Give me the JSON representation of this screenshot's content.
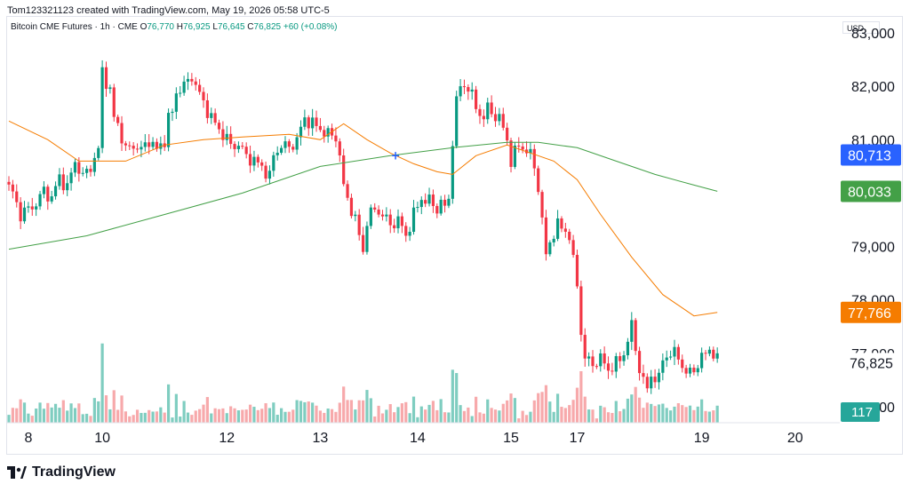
{
  "header": {
    "credit": "Tom123321123 created with TradingView.com, May 19, 2026 05:58 UTC-5"
  },
  "legend": {
    "symbol": "Bitcoin CME Futures · 1h · CME",
    "o_key": "O",
    "o": "76,770",
    "h_key": "H",
    "h": "76,925",
    "l_key": "L",
    "l": "76,645",
    "c_key": "C",
    "c": "76,825",
    "change": "+60 (+0.08%)"
  },
  "currency": "USD",
  "brand": {
    "name": "TradingView"
  },
  "colors": {
    "up": "#089981",
    "down": "#f23645",
    "vol_up": "#7fcdc0",
    "vol_down": "#f7a9ab",
    "ma_orange": "#f57c00",
    "ma_green": "#43a047",
    "blue_label": "#2962ff"
  },
  "chart_data": {
    "type": "candlestick",
    "y_axis": {
      "min": 75700,
      "max": 83300,
      "ticks": [
        76000,
        77000,
        78000,
        79000,
        80000,
        81000,
        82000,
        83000
      ],
      "tick_labels": [
        "76,000",
        "77,000",
        "78,000",
        "79,000",
        "",
        "81,000",
        "82,000",
        "83,000"
      ]
    },
    "x_axis": {
      "labels": [
        "8",
        "10",
        "12",
        "13",
        "14",
        "15",
        "17",
        "19",
        "20"
      ],
      "label_bar_index": [
        5,
        24,
        56,
        80,
        105,
        129,
        146,
        178,
        202
      ]
    },
    "price_labels": [
      {
        "value": 80713,
        "text": "80,713",
        "color": "#2962ff"
      },
      {
        "value": 80033,
        "text": "80,033",
        "color": "#43a047"
      },
      {
        "value": 77766,
        "text": "77,766",
        "color": "#f57c00"
      },
      {
        "value": 76825,
        "text": "76,825",
        "color": "none"
      }
    ],
    "volume_label": {
      "text": "117",
      "color": "#26a69a"
    },
    "anchors": [
      [
        0,
        80100
      ],
      [
        1,
        80000
      ],
      [
        3,
        79600
      ],
      [
        5,
        79700
      ],
      [
        7,
        79800
      ],
      [
        9,
        80050
      ],
      [
        11,
        79900
      ],
      [
        13,
        80300
      ],
      [
        15,
        80100
      ],
      [
        17,
        80600
      ],
      [
        19,
        80300
      ],
      [
        20,
        80400
      ],
      [
        21,
        80500
      ],
      [
        23,
        80800
      ],
      [
        24,
        82300
      ],
      [
        26,
        81900
      ],
      [
        27,
        81400
      ],
      [
        28,
        81300
      ],
      [
        30,
        80800
      ],
      [
        32,
        80900
      ],
      [
        34,
        80800
      ],
      [
        36,
        81000
      ],
      [
        38,
        80800
      ],
      [
        40,
        81000
      ],
      [
        41,
        81400
      ],
      [
        42,
        81500
      ],
      [
        43,
        81900
      ],
      [
        45,
        82000
      ],
      [
        47,
        82200
      ],
      [
        48,
        82000
      ],
      [
        50,
        81700
      ],
      [
        52,
        81400
      ],
      [
        55,
        81100
      ],
      [
        57,
        80900
      ],
      [
        59,
        80900
      ],
      [
        61,
        80700
      ],
      [
        63,
        80600
      ],
      [
        65,
        80500
      ],
      [
        67,
        80300
      ],
      [
        68,
        80700
      ],
      [
        70,
        80900
      ],
      [
        72,
        80850
      ],
      [
        74,
        81000
      ],
      [
        76,
        81400
      ],
      [
        78,
        81300
      ],
      [
        80,
        81200
      ],
      [
        82,
        81100
      ],
      [
        84,
        81050
      ],
      [
        85,
        80700
      ],
      [
        86,
        80100
      ],
      [
        88,
        79700
      ],
      [
        89,
        79500
      ],
      [
        90,
        79200
      ],
      [
        91,
        78900
      ],
      [
        92,
        79500
      ],
      [
        94,
        79700
      ],
      [
        96,
        79600
      ],
      [
        98,
        79400
      ],
      [
        100,
        79500
      ],
      [
        102,
        79200
      ],
      [
        104,
        79600
      ],
      [
        106,
        79900
      ],
      [
        108,
        79850
      ],
      [
        110,
        79700
      ],
      [
        111,
        79850
      ],
      [
        112,
        79700
      ],
      [
        113,
        79900
      ],
      [
        114,
        81000
      ],
      [
        115,
        81700
      ],
      [
        116,
        82000
      ],
      [
        118,
        82000
      ],
      [
        120,
        81600
      ],
      [
        122,
        81400
      ],
      [
        123,
        81600
      ],
      [
        124,
        81500
      ],
      [
        126,
        81400
      ],
      [
        128,
        81000
      ],
      [
        129,
        80600
      ],
      [
        131,
        80900
      ],
      [
        133,
        80800
      ],
      [
        134,
        80700
      ],
      [
        135,
        80500
      ],
      [
        136,
        80100
      ],
      [
        137,
        79500
      ],
      [
        138,
        78800
      ],
      [
        139,
        79100
      ],
      [
        141,
        79400
      ],
      [
        143,
        79300
      ],
      [
        144,
        79200
      ],
      [
        145,
        78700
      ],
      [
        146,
        78300
      ],
      [
        147,
        77400
      ],
      [
        148,
        76900
      ],
      [
        150,
        76800
      ],
      [
        152,
        76900
      ],
      [
        154,
        76700
      ],
      [
        156,
        76800
      ],
      [
        158,
        77000
      ],
      [
        160,
        77500
      ],
      [
        162,
        76700
      ],
      [
        164,
        76300
      ],
      [
        165,
        76600
      ],
      [
        167,
        76500
      ],
      [
        168,
        76900
      ],
      [
        170,
        77000
      ],
      [
        172,
        76950
      ],
      [
        174,
        76600
      ],
      [
        176,
        76700
      ],
      [
        178,
        76900
      ],
      [
        180,
        77100
      ],
      [
        182,
        76850
      ]
    ],
    "gap_after_bar": 144,
    "series": [
      {
        "name": "",
        "color": "#f57c00",
        "points": [
          [
            0,
            81350
          ],
          [
            10,
            81000
          ],
          [
            18,
            80600
          ],
          [
            30,
            80600
          ],
          [
            40,
            80900
          ],
          [
            50,
            81000
          ],
          [
            60,
            81050
          ],
          [
            72,
            81100
          ],
          [
            80,
            81000
          ],
          [
            86,
            81300
          ],
          [
            92,
            81000
          ],
          [
            98,
            80750
          ],
          [
            104,
            80550
          ],
          [
            110,
            80400
          ],
          [
            114,
            80350
          ],
          [
            120,
            80700
          ],
          [
            128,
            80900
          ],
          [
            134,
            80750
          ],
          [
            140,
            80600
          ],
          [
            146,
            80250
          ],
          [
            152,
            79600
          ],
          [
            160,
            78800
          ],
          [
            168,
            78100
          ],
          [
            176,
            77700
          ],
          [
            182,
            77766
          ]
        ]
      },
      {
        "name": "",
        "color": "#43a047",
        "points": [
          [
            0,
            78950
          ],
          [
            20,
            79200
          ],
          [
            40,
            79600
          ],
          [
            60,
            80000
          ],
          [
            80,
            80500
          ],
          [
            98,
            80700
          ],
          [
            114,
            80850
          ],
          [
            128,
            80950
          ],
          [
            136,
            80950
          ],
          [
            146,
            80850
          ],
          [
            156,
            80600
          ],
          [
            166,
            80350
          ],
          [
            176,
            80150
          ],
          [
            182,
            80033
          ]
        ]
      }
    ],
    "legend": "top-left",
    "grid": false
  }
}
